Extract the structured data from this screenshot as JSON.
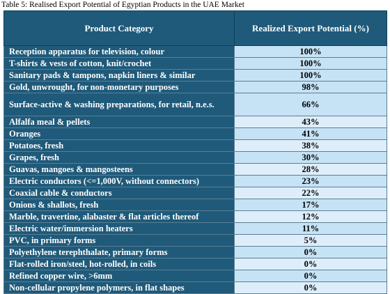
{
  "caption": "Table 5: Realised Export Potential of Egyptian Products in the UAE Market",
  "headers": [
    "Product Category",
    "Realized Export Potential (%)"
  ],
  "rows": [
    {
      "category": "Reception apparatus for television, colour",
      "value": "100%"
    },
    {
      "category": "T-shirts & vests of cotton, knit/crochet",
      "value": "100%"
    },
    {
      "category": "Sanitary pads & tampons, napkin liners & similar",
      "value": "100%"
    },
    {
      "category": "Gold, unwrought, for non-monetary purposes",
      "value": "98%"
    },
    {
      "category": "Surface-active & washing preparations, for retail, n.e.s.",
      "value": "66%"
    },
    {
      "category": "Alfalfa meal & pellets",
      "value": "43%"
    },
    {
      "category": "Oranges",
      "value": "41%"
    },
    {
      "category": "Potatoes, fresh",
      "value": "38%"
    },
    {
      "category": "Grapes, fresh",
      "value": "30%"
    },
    {
      "category": "Guavas, mangoes & mangosteens",
      "value": "28%"
    },
    {
      "category": "Electric conductors (<=1,000V, without connectors)",
      "value": "23%"
    },
    {
      "category": "Coaxial cable & conductors",
      "value": "22%"
    },
    {
      "category": "Onions & shallots, fresh",
      "value": "17%"
    },
    {
      "category": "Marble, travertine, alabaster & flat articles thereof",
      "value": "12%"
    },
    {
      "category": "Electric water/immersion heaters",
      "value": "11%"
    },
    {
      "category": "PVC, in primary forms",
      "value": "5%"
    },
    {
      "category": "Polyethylene terephthalate, primary forms",
      "value": "0%"
    },
    {
      "category": "Flat-rolled iron/steel, hot-rolled, in coils",
      "value": "0%"
    },
    {
      "category": "Refined copper wire, >6mm",
      "value": "0%"
    },
    {
      "category": "Non-cellular propylene polymers, in flat shapes",
      "value": "0%"
    }
  ]
}
